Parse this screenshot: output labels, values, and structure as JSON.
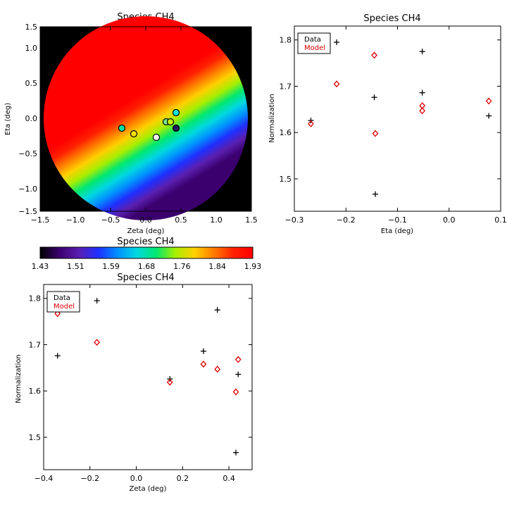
{
  "colors": {
    "background": "#ffffff",
    "axis": "#000000",
    "data_marker": "#000000",
    "model_marker": "#dd0000",
    "map_background": "#000000",
    "rainbow": [
      "#000000",
      "#3b006e",
      "#5a1fb0",
      "#1f2fff",
      "#0090ff",
      "#00d8e0",
      "#00e870",
      "#a8ee00",
      "#ffd000",
      "#ff7a00",
      "#ff2000",
      "#ff0000"
    ]
  },
  "chart_data": [
    {
      "id": "map",
      "type": "scatter",
      "title": "Species CH4",
      "xlabel": "Zeta (deg)",
      "ylabel": "Eta (deg)",
      "xlim": [
        -1.5,
        1.5
      ],
      "ylim": [
        -1.5,
        1.5
      ],
      "xticks": [
        "−1.5",
        "−1.0",
        "−0.5",
        "0.0",
        "0.5",
        "1.0",
        "1.5"
      ],
      "yticks": [
        "−1.5",
        "−1.0",
        "−0.5",
        "0.0",
        "0.5",
        "1.0",
        "1.5"
      ],
      "disk_radius_deg": 1.45,
      "field_value_range": [
        1.43,
        1.93
      ],
      "points": [
        {
          "zeta": -0.34,
          "eta": -0.14,
          "color": "#00e0a0"
        },
        {
          "zeta": -0.17,
          "eta": -0.22,
          "color": "#f0e000"
        },
        {
          "zeta": 0.15,
          "eta": -0.27,
          "color": "#ffffff"
        },
        {
          "zeta": 0.29,
          "eta": -0.05,
          "color": "#78e890"
        },
        {
          "zeta": 0.35,
          "eta": -0.05,
          "color": "#c8f000"
        },
        {
          "zeta": 0.43,
          "eta": 0.08,
          "color": "#00e8e0"
        },
        {
          "zeta": 0.43,
          "eta": -0.14,
          "color": "#1a1a60"
        }
      ]
    },
    {
      "id": "eta_plot",
      "type": "scatter",
      "title": "Species CH4",
      "xlabel": "Eta (deg)",
      "ylabel": "Normalization",
      "xlim": [
        -0.3,
        0.1
      ],
      "ylim": [
        1.43,
        1.83
      ],
      "xticks": [
        "−0.3",
        "−0.2",
        "−0.1",
        "0.0",
        "0.1"
      ],
      "xtick_values": [
        -0.3,
        -0.2,
        -0.1,
        0.0,
        0.1
      ],
      "yticks": [
        "1.5",
        "1.6",
        "1.7",
        "1.8"
      ],
      "ytick_values": [
        1.5,
        1.6,
        1.7,
        1.8
      ],
      "legend": [
        "Data",
        "Model"
      ],
      "series": [
        {
          "name": "Data",
          "marker": "plus",
          "x": [
            -0.268,
            -0.218,
            -0.145,
            -0.143,
            -0.052,
            -0.052,
            0.077
          ],
          "y": [
            1.626,
            1.795,
            1.676,
            1.467,
            1.775,
            1.686,
            1.636
          ]
        },
        {
          "name": "Model",
          "marker": "diamond",
          "x": [
            -0.268,
            -0.218,
            -0.145,
            -0.143,
            -0.052,
            -0.052,
            0.077
          ],
          "y": [
            1.619,
            1.705,
            1.767,
            1.598,
            1.658,
            1.647,
            1.668
          ]
        }
      ]
    },
    {
      "id": "colorbar",
      "type": "heatmap",
      "title": "Species CH4",
      "range": [
        1.43,
        1.93
      ],
      "ticks": [
        "1.43",
        "1.51",
        "1.59",
        "1.68",
        "1.76",
        "1.84",
        "1.93"
      ]
    },
    {
      "id": "zeta_plot",
      "type": "scatter",
      "title": "Species CH4",
      "xlabel": "Zeta (deg)",
      "ylabel": "Normalization",
      "xlim": [
        -0.4,
        0.5
      ],
      "ylim": [
        1.43,
        1.83
      ],
      "xticks": [
        "−0.4",
        "−0.2",
        "0.0",
        "0.2",
        "0.4"
      ],
      "xtick_values": [
        -0.4,
        -0.2,
        0.0,
        0.2,
        0.4
      ],
      "yticks": [
        "1.5",
        "1.6",
        "1.7",
        "1.8"
      ],
      "ytick_values": [
        1.5,
        1.6,
        1.7,
        1.8
      ],
      "legend": [
        "Data",
        "Model"
      ],
      "series": [
        {
          "name": "Data",
          "marker": "plus",
          "x": [
            -0.34,
            -0.17,
            0.145,
            0.29,
            0.35,
            0.43,
            0.44
          ],
          "y": [
            1.676,
            1.795,
            1.626,
            1.686,
            1.775,
            1.467,
            1.636
          ]
        },
        {
          "name": "Model",
          "marker": "diamond",
          "x": [
            -0.34,
            -0.17,
            0.145,
            0.29,
            0.35,
            0.43,
            0.44
          ],
          "y": [
            1.767,
            1.705,
            1.619,
            1.658,
            1.647,
            1.598,
            1.668
          ]
        }
      ]
    }
  ]
}
